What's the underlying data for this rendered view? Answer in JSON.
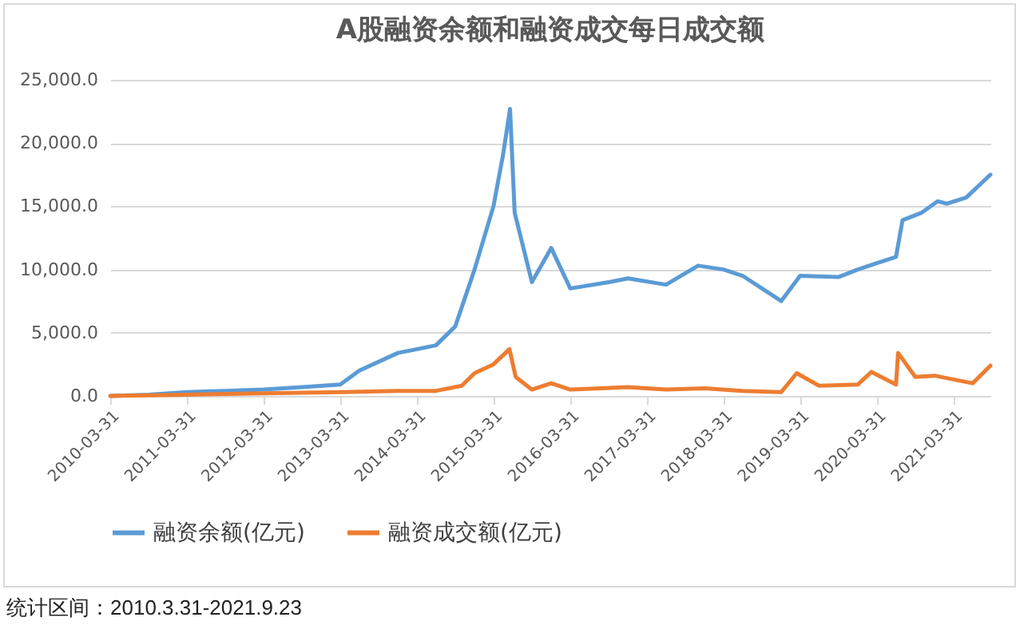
{
  "chart_data": {
    "type": "line",
    "title": "A股融资余额和融资成交每日成交额",
    "xlim": [
      "2010-03-31",
      "2021-09-23"
    ],
    "xticks": [
      "2010-03-31",
      "2011-03-31",
      "2012-03-31",
      "2013-03-31",
      "2014-03-31",
      "2015-03-31",
      "2016-03-31",
      "2017-03-31",
      "2018-03-31",
      "2019-03-31",
      "2020-03-31",
      "2021-03-31"
    ],
    "ylim": [
      0,
      25000
    ],
    "yticks": [
      {
        "value": 0,
        "label": "0.0"
      },
      {
        "value": 5000,
        "label": "5,000.0"
      },
      {
        "value": 10000,
        "label": "10,000.0"
      },
      {
        "value": 15000,
        "label": "15,000.0"
      },
      {
        "value": 20000,
        "label": "20,000.0"
      },
      {
        "value": 25000,
        "label": "25,000.0"
      }
    ],
    "grid": "y",
    "legend": "bottom",
    "marker": "none",
    "line_style": "solid",
    "series": [
      {
        "name": "融资余额(亿元)",
        "color": "#5b9bd5",
        "x": [
          "2010-03-31",
          "2010-09-30",
          "2011-03-31",
          "2011-09-30",
          "2012-03-31",
          "2012-09-30",
          "2013-03-31",
          "2013-06-30",
          "2013-12-31",
          "2014-06-30",
          "2014-09-30",
          "2014-12-31",
          "2015-03-31",
          "2015-05-15",
          "2015-06-18",
          "2015-07-10",
          "2015-09-30",
          "2015-12-31",
          "2016-03-31",
          "2016-09-30",
          "2016-12-31",
          "2017-06-30",
          "2017-11-30",
          "2018-03-31",
          "2018-06-30",
          "2018-12-31",
          "2019-03-31",
          "2019-09-30",
          "2019-12-31",
          "2020-03-31",
          "2020-06-30",
          "2020-07-31",
          "2020-10-31",
          "2021-01-15",
          "2021-02-28",
          "2021-05-31",
          "2021-09-23"
        ],
        "values": [
          0,
          100,
          300,
          400,
          500,
          700,
          900,
          2000,
          3400,
          4000,
          5500,
          10000,
          15000,
          19000,
          22700,
          14500,
          9000,
          11700,
          8500,
          9000,
          9300,
          8800,
          10300,
          10000,
          9500,
          7500,
          9500,
          9400,
          10000,
          10500,
          11000,
          13900,
          14500,
          15400,
          15200,
          15700,
          17500
        ]
      },
      {
        "name": "融资成交额(亿元)",
        "color": "#ed7d31",
        "x": [
          "2010-03-31",
          "2011-03-31",
          "2012-03-31",
          "2013-03-31",
          "2013-12-31",
          "2014-06-30",
          "2014-10-31",
          "2014-12-31",
          "2015-03-31",
          "2015-06-15",
          "2015-07-15",
          "2015-09-30",
          "2015-12-31",
          "2016-03-31",
          "2016-12-31",
          "2017-06-30",
          "2017-12-31",
          "2018-06-30",
          "2018-12-31",
          "2019-03-15",
          "2019-06-30",
          "2019-12-31",
          "2020-03-05",
          "2020-06-30",
          "2020-07-10",
          "2020-09-30",
          "2020-12-31",
          "2021-03-31",
          "2021-06-30",
          "2021-09-23"
        ],
        "values": [
          0,
          100,
          200,
          300,
          400,
          400,
          800,
          1800,
          2500,
          3700,
          1500,
          500,
          1000,
          500,
          700,
          500,
          600,
          400,
          300,
          1800,
          800,
          900,
          1900,
          900,
          3400,
          1500,
          1600,
          1300,
          1000,
          2400
        ]
      }
    ],
    "annotations": [
      "统计区间：2010.3.31-2021.9.23"
    ]
  }
}
